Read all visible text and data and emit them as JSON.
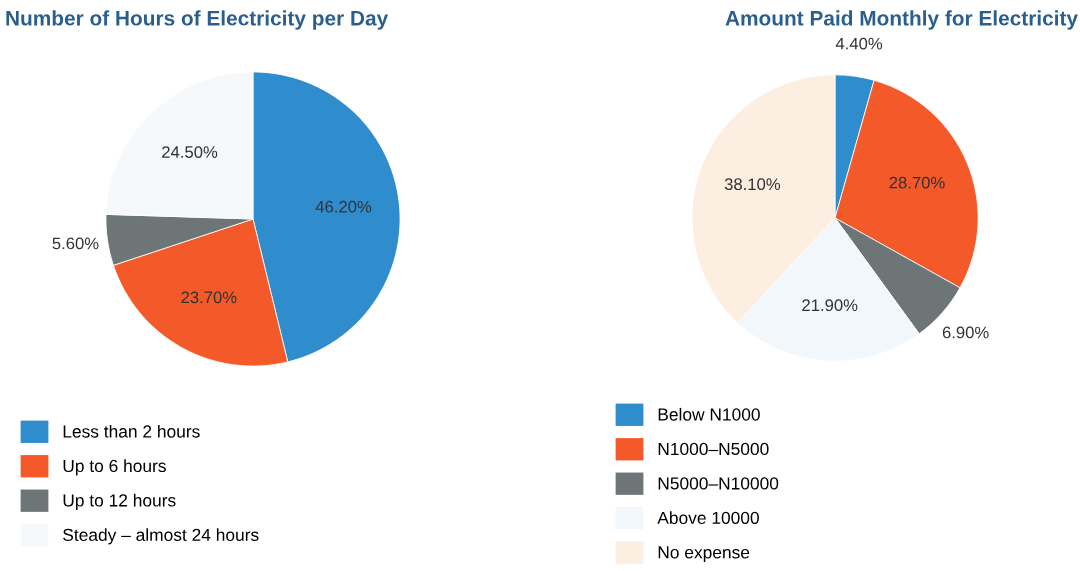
{
  "chart_data": [
    {
      "type": "pie",
      "title": "Number of Hours of Electricity per Day",
      "categories": [
        "Less than 2 hours",
        "Up to 6 hours",
        "Up to 12 hours",
        "Steady – almost 24 hours"
      ],
      "values": [
        46.2,
        23.7,
        5.6,
        24.5
      ],
      "value_labels": [
        "46.20%",
        "23.70%",
        "5.60%",
        "24.50%"
      ],
      "colors": [
        "#2f8ccd",
        "#f4592a",
        "#6d7576",
        "#f5f9fc"
      ],
      "legend": "bottom"
    },
    {
      "type": "pie",
      "title": "Amount Paid Monthly for Electricity",
      "categories": [
        "Below N1000",
        "N1000–N5000",
        "N5000–N10000",
        "Above 10000",
        "No expense"
      ],
      "values": [
        4.4,
        28.7,
        6.9,
        21.9,
        38.1
      ],
      "value_labels": [
        "4.40%",
        "28.70%",
        "6.90%",
        "21.90%",
        "38.10%"
      ],
      "colors": [
        "#2f8ccd",
        "#f4592a",
        "#6d7576",
        "#f2f7fb",
        "#fdeee2"
      ],
      "legend": "bottom"
    }
  ]
}
